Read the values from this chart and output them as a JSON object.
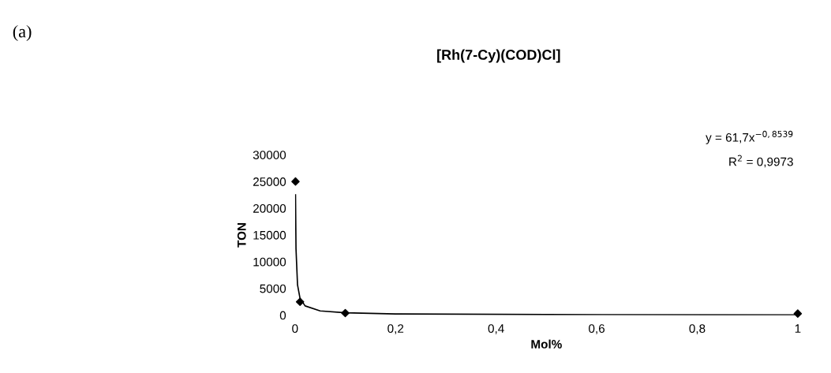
{
  "chart_data": {
    "type": "scatter",
    "title": "[Rh(7-Cy)(COD)Cl]",
    "xlabel": "Mol%",
    "ylabel": "TON",
    "xlim": [
      0,
      1
    ],
    "xticks": [
      0,
      {
        "value": 0.2,
        "label": "0,2"
      },
      {
        "value": 0.4,
        "label": "0,4"
      },
      {
        "value": 0.6,
        "label": "0,6"
      },
      {
        "value": 0.8,
        "label": "0,8"
      },
      1
    ],
    "ylim": [
      0,
      30000
    ],
    "yticks": [
      0,
      5000,
      10000,
      15000,
      20000,
      25000,
      30000
    ],
    "grid": false,
    "legend": false,
    "series": [
      {
        "color": "#000000",
        "marker": "diamond",
        "x": [
          0.001,
          0.01,
          0.1,
          1
        ],
        "values": [
          25000,
          2500,
          400,
          300
        ]
      },
      {
        "type": "line",
        "color": "#000000",
        "marker": "none",
        "line_style": "solid",
        "x": [
          0.001,
          0.002,
          0.005,
          0.01,
          0.02,
          0.05,
          0.1,
          0.2,
          0.5,
          1
        ],
        "values": [
          22500,
          12400,
          5700,
          3150,
          1740,
          800,
          440,
          240,
          110,
          60
        ]
      }
    ],
    "annotations": [
      "(a)",
      "y = 61,7x$^{−0,8539}$",
      "R$^{2}$ = 0,9973"
    ]
  }
}
